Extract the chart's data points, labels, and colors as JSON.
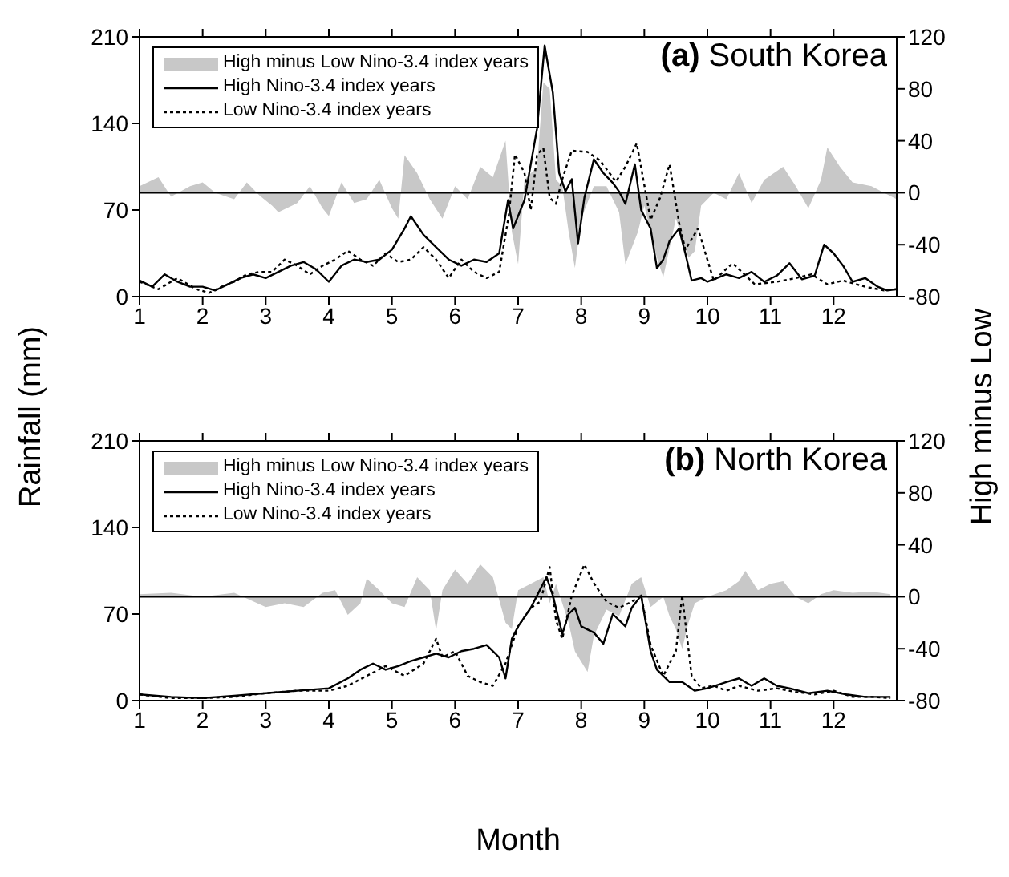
{
  "chart_data": [
    {
      "type": "line",
      "title": "(a) South Korea",
      "ylabel": "Rainfall (mm)",
      "y2label": "High minus Low",
      "xlim": [
        1,
        13
      ],
      "xticks": [
        1,
        2,
        3,
        4,
        5,
        6,
        7,
        8,
        9,
        10,
        11,
        12
      ],
      "ylim": [
        0,
        210
      ],
      "yticks": [
        0,
        70,
        140,
        210
      ],
      "y2lim": [
        -80,
        120
      ],
      "y2ticks": [
        -80,
        -40,
        0,
        40,
        80,
        120
      ],
      "grid": false,
      "legend": "top left",
      "marker": "none",
      "ref_lines": [
        {
          "axis": "y2",
          "value": 0,
          "color": "#000000"
        }
      ],
      "series": [
        {
          "name": "High minus Low Nino-3.4 index years",
          "type": "area",
          "axis": "y2",
          "color": "#c8c8c8",
          "x": [
            1,
            1.3,
            1.5,
            1.8,
            2,
            2.2,
            2.5,
            2.7,
            2.9,
            3.1,
            3.2,
            3.5,
            3.7,
            3.9,
            4,
            4.2,
            4.4,
            4.6,
            4.8,
            5,
            5.1,
            5.2,
            5.4,
            5.6,
            5.8,
            6,
            6.2,
            6.4,
            6.6,
            6.8,
            6.9,
            7,
            7.1,
            7.3,
            7.4,
            7.5,
            7.6,
            7.7,
            7.8,
            7.9,
            8,
            8.2,
            8.4,
            8.6,
            8.7,
            8.9,
            9,
            9.2,
            9.3,
            9.5,
            9.7,
            9.8,
            9.9,
            10.1,
            10.3,
            10.5,
            10.7,
            10.9,
            11.2,
            11.4,
            11.6,
            11.8,
            11.9,
            12.1,
            12.3,
            12.6,
            12.8,
            13
          ],
          "values": [
            5,
            12,
            -3,
            5,
            8,
            0,
            -5,
            8,
            -2,
            -10,
            -15,
            -8,
            5,
            -12,
            -18,
            8,
            -8,
            -5,
            10,
            -12,
            -20,
            29,
            15,
            -5,
            -20,
            5,
            -5,
            20,
            12,
            40,
            -30,
            -55,
            10,
            20,
            85,
            80,
            10,
            5,
            -30,
            -58,
            -20,
            5,
            5,
            -15,
            -55,
            -30,
            -10,
            -50,
            -65,
            -20,
            -50,
            -45,
            -10,
            0,
            -5,
            15,
            -8,
            10,
            20,
            5,
            -12,
            10,
            35,
            20,
            8,
            5,
            0,
            -5
          ]
        },
        {
          "name": "High Nino-3.4 index years",
          "type": "line",
          "line_style": "solid",
          "color": "#000000",
          "x": [
            1,
            1.2,
            1.4,
            1.6,
            1.8,
            2,
            2.2,
            2.4,
            2.6,
            2.8,
            3,
            3.2,
            3.4,
            3.6,
            3.8,
            4,
            4.2,
            4.4,
            4.6,
            4.8,
            5,
            5.2,
            5.3,
            5.5,
            5.7,
            5.9,
            6.1,
            6.3,
            6.5,
            6.7,
            6.84,
            6.92,
            7.1,
            7.3,
            7.42,
            7.55,
            7.65,
            7.75,
            7.85,
            7.95,
            8.05,
            8.2,
            8.35,
            8.5,
            8.6,
            8.7,
            8.85,
            8.95,
            9.1,
            9.2,
            9.3,
            9.4,
            9.55,
            9.65,
            9.75,
            9.9,
            10,
            10.15,
            10.3,
            10.5,
            10.7,
            10.9,
            11.1,
            11.3,
            11.5,
            11.7,
            11.85,
            12,
            12.15,
            12.3,
            12.5,
            12.7,
            12.85,
            13
          ],
          "values": [
            13,
            8,
            18,
            12,
            8,
            8,
            5,
            10,
            15,
            18,
            15,
            20,
            25,
            28,
            22,
            12,
            25,
            30,
            28,
            30,
            38,
            55,
            65,
            50,
            40,
            30,
            25,
            30,
            28,
            35,
            78,
            55,
            78,
            136,
            203,
            165,
            100,
            85,
            95,
            43,
            80,
            111,
            100,
            92,
            85,
            75,
            107,
            70,
            55,
            23,
            30,
            45,
            55,
            35,
            13,
            15,
            12,
            15,
            18,
            15,
            20,
            12,
            17,
            27,
            14,
            17,
            42,
            35,
            25,
            12,
            15,
            8,
            5,
            6
          ]
        },
        {
          "name": "Low Nino-3.4 index years",
          "type": "line",
          "line_style": "dotted",
          "color": "#000000",
          "x": [
            1,
            1.3,
            1.6,
            1.9,
            2.1,
            2.3,
            2.5,
            2.7,
            2.9,
            3.1,
            3.3,
            3.5,
            3.7,
            3.9,
            4.1,
            4.3,
            4.5,
            4.7,
            4.9,
            5.1,
            5.3,
            5.5,
            5.7,
            5.9,
            6.1,
            6.3,
            6.5,
            6.7,
            6.85,
            6.95,
            7.1,
            7.2,
            7.3,
            7.4,
            7.5,
            7.6,
            7.7,
            7.85,
            8.1,
            8.3,
            8.55,
            8.7,
            8.88,
            9.1,
            9.25,
            9.4,
            9.55,
            9.65,
            9.85,
            10.1,
            10.4,
            10.75,
            11.1,
            11.4,
            11.65,
            11.9,
            12.15,
            12.5,
            12.8,
            13
          ],
          "values": [
            12,
            6,
            15,
            6,
            3,
            8,
            12,
            18,
            20,
            20,
            30,
            25,
            18,
            25,
            30,
            37,
            30,
            25,
            35,
            28,
            30,
            40,
            30,
            15,
            30,
            20,
            15,
            20,
            65,
            115,
            100,
            70,
            115,
            120,
            80,
            75,
            95,
            118,
            117,
            110,
            93,
            105,
            124,
            62,
            80,
            107,
            60,
            38,
            55,
            13,
            27,
            10,
            12,
            15,
            18,
            10,
            13,
            8,
            5,
            6
          ]
        }
      ]
    },
    {
      "type": "line",
      "title": "(b) North Korea",
      "xlabel": "Month",
      "xlim": [
        1,
        13
      ],
      "xticks": [
        1,
        2,
        3,
        4,
        5,
        6,
        7,
        8,
        9,
        10,
        11,
        12
      ],
      "ylim": [
        0,
        210
      ],
      "yticks": [
        0,
        70,
        140,
        210
      ],
      "y2lim": [
        -80,
        120
      ],
      "y2ticks": [
        -80,
        -40,
        0,
        40,
        80,
        120
      ],
      "grid": false,
      "legend": "top left",
      "marker": "none",
      "ref_lines": [
        {
          "axis": "y2",
          "value": 0,
          "color": "#000000"
        }
      ],
      "series": [
        {
          "name": "High minus Low Nino-3.4 index years",
          "type": "area",
          "axis": "y2",
          "color": "#c8c8c8",
          "x": [
            1,
            1.5,
            2,
            2.5,
            3,
            3.3,
            3.6,
            3.9,
            4.1,
            4.3,
            4.5,
            4.6,
            4.8,
            5,
            5.2,
            5.4,
            5.6,
            5.7,
            5.8,
            6,
            6.2,
            6.4,
            6.6,
            6.8,
            6.9,
            7,
            7.2,
            7.4,
            7.5,
            7.6,
            7.8,
            7.9,
            8.1,
            8.2,
            8.4,
            8.6,
            8.8,
            8.95,
            9.1,
            9.3,
            9.4,
            9.5,
            9.6,
            9.7,
            9.8,
            10,
            10.3,
            10.5,
            10.6,
            10.8,
            11,
            11.2,
            11.4,
            11.6,
            11.8,
            12,
            12.3,
            12.6,
            12.9
          ],
          "values": [
            2,
            3,
            0,
            3,
            -8,
            -5,
            -8,
            3,
            5,
            -14,
            -5,
            14,
            5,
            -5,
            -8,
            15,
            5,
            -26,
            5,
            21,
            10,
            25,
            15,
            -20,
            -25,
            5,
            10,
            15,
            -5,
            10,
            -20,
            -42,
            -58,
            -30,
            -10,
            -15,
            10,
            15,
            -8,
            0,
            -15,
            -25,
            -40,
            -20,
            -5,
            0,
            5,
            12,
            20,
            5,
            10,
            12,
            0,
            -5,
            2,
            5,
            3,
            4,
            2
          ]
        },
        {
          "name": "High Nino-3.4 index years",
          "type": "line",
          "line_style": "solid",
          "color": "#000000",
          "x": [
            1,
            1.5,
            2,
            2.5,
            3,
            3.5,
            4,
            4.3,
            4.5,
            4.7,
            4.9,
            5.1,
            5.3,
            5.5,
            5.7,
            5.9,
            6.1,
            6.3,
            6.5,
            6.7,
            6.8,
            6.9,
            7,
            7.2,
            7.3,
            7.45,
            7.55,
            7.7,
            7.8,
            7.9,
            8,
            8.2,
            8.35,
            8.5,
            8.7,
            8.8,
            8.95,
            9.1,
            9.2,
            9.4,
            9.6,
            9.8,
            10,
            10.3,
            10.5,
            10.7,
            10.9,
            11.1,
            11.3,
            11.6,
            11.9,
            12.2,
            12.5,
            12.9
          ],
          "values": [
            5,
            3,
            2,
            4,
            6,
            8,
            10,
            18,
            25,
            30,
            25,
            28,
            32,
            35,
            38,
            35,
            40,
            42,
            45,
            35,
            18,
            50,
            60,
            75,
            85,
            100,
            85,
            54,
            70,
            75,
            60,
            55,
            46,
            70,
            60,
            75,
            85,
            40,
            25,
            15,
            15,
            8,
            10,
            15,
            18,
            12,
            18,
            12,
            10,
            6,
            8,
            5,
            3,
            3
          ]
        },
        {
          "name": "Low Nino-3.4 index years",
          "type": "line",
          "line_style": "dotted",
          "color": "#000000",
          "x": [
            1,
            1.5,
            2,
            2.5,
            3,
            3.5,
            4,
            4.3,
            4.6,
            4.9,
            5.2,
            5.5,
            5.7,
            5.8,
            6,
            6.2,
            6.4,
            6.6,
            6.8,
            7,
            7.2,
            7.35,
            7.5,
            7.6,
            7.7,
            7.85,
            8.05,
            8.2,
            8.4,
            8.6,
            8.8,
            8.95,
            9.1,
            9.3,
            9.5,
            9.6,
            9.75,
            9.9,
            10.1,
            10.3,
            10.5,
            10.8,
            11.1,
            11.4,
            11.7,
            12,
            12.3,
            12.6,
            12.9
          ],
          "values": [
            5,
            2,
            2,
            3,
            6,
            8,
            8,
            12,
            20,
            28,
            20,
            30,
            50,
            35,
            40,
            20,
            15,
            12,
            30,
            60,
            75,
            80,
            108,
            65,
            50,
            85,
            110,
            95,
            80,
            75,
            80,
            85,
            45,
            20,
            40,
            85,
            20,
            10,
            12,
            8,
            12,
            8,
            10,
            7,
            5,
            8,
            3,
            3,
            2
          ]
        }
      ]
    }
  ]
}
